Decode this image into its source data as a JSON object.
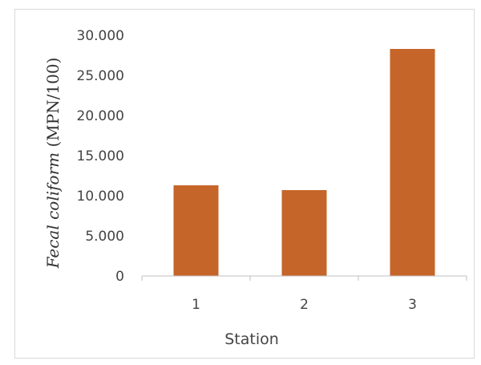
{
  "chart_data": {
    "type": "bar",
    "categories": [
      "1",
      "2",
      "3"
    ],
    "values": [
      11300,
      10700,
      28300
    ],
    "ylim": [
      0,
      30000
    ],
    "yticks": [
      0,
      5000,
      10000,
      15000,
      20000,
      25000,
      30000
    ],
    "ytick_labels": [
      "0",
      "5.000",
      "10.000",
      "15.000",
      "20.000",
      "25.000",
      "30.000"
    ],
    "xlabel": "Station",
    "ylabel_italic": "Fecal coliform",
    "ylabel_rest": " (MPN/100)",
    "bar_color": "#c5652a",
    "axis_color": "#bfbfbf",
    "grid": false,
    "legend": "none"
  }
}
